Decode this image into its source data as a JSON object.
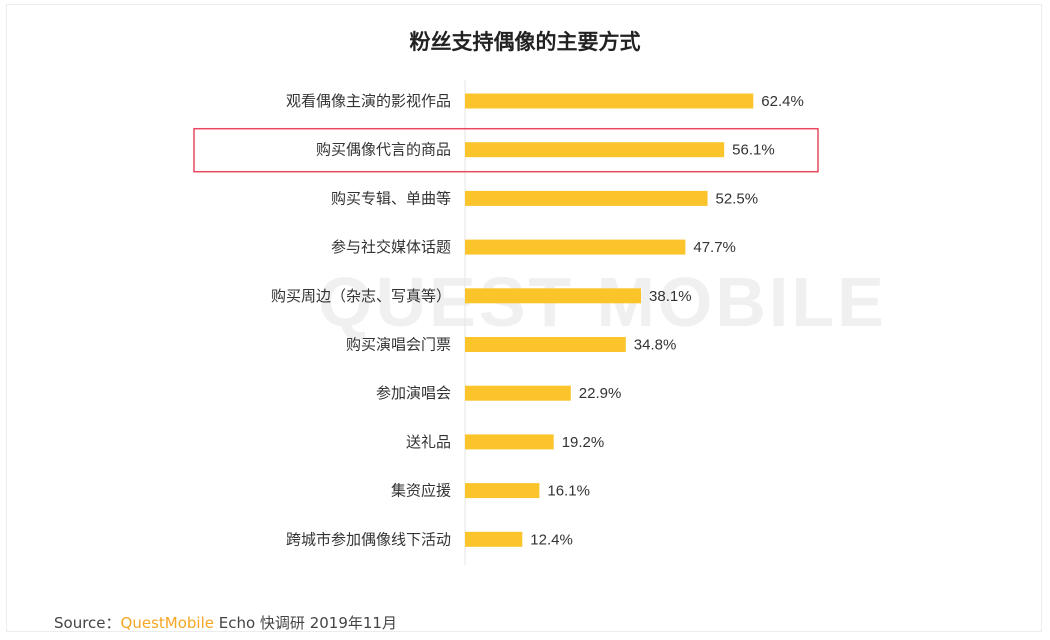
{
  "chart_data": {
    "type": "bar",
    "orientation": "horizontal",
    "title": "粉丝支持偶像的主要方式",
    "categories": [
      "观看偶像主演的影视作品",
      "购买偶像代言的商品",
      "购买专辑、单曲等",
      "参与社交媒体话题",
      "购买周边（杂志、写真等）",
      "购买演唱会门票",
      "参加演唱会",
      "送礼品",
      "集资应援",
      "跨城市参加偶像线下活动"
    ],
    "values": [
      62.4,
      56.1,
      52.5,
      47.7,
      38.1,
      34.8,
      22.9,
      19.2,
      16.1,
      12.4
    ],
    "value_labels": [
      "62.4%",
      "56.1%",
      "52.5%",
      "47.7%",
      "38.1%",
      "34.8%",
      "22.9%",
      "19.2%",
      "16.1%",
      "12.4%"
    ],
    "highlighted_category": "购买偶像代言的商品",
    "xlim": [
      0,
      100
    ],
    "grid": false,
    "legend": "none",
    "bar_color": "#fcc42b",
    "highlight_color": "#e8495f"
  },
  "watermark": "QUEST MOBILE",
  "source": {
    "prefix": "Source：",
    "brand": "QuestMobile",
    "suffix": " Echo 快调研 2019年11月"
  }
}
